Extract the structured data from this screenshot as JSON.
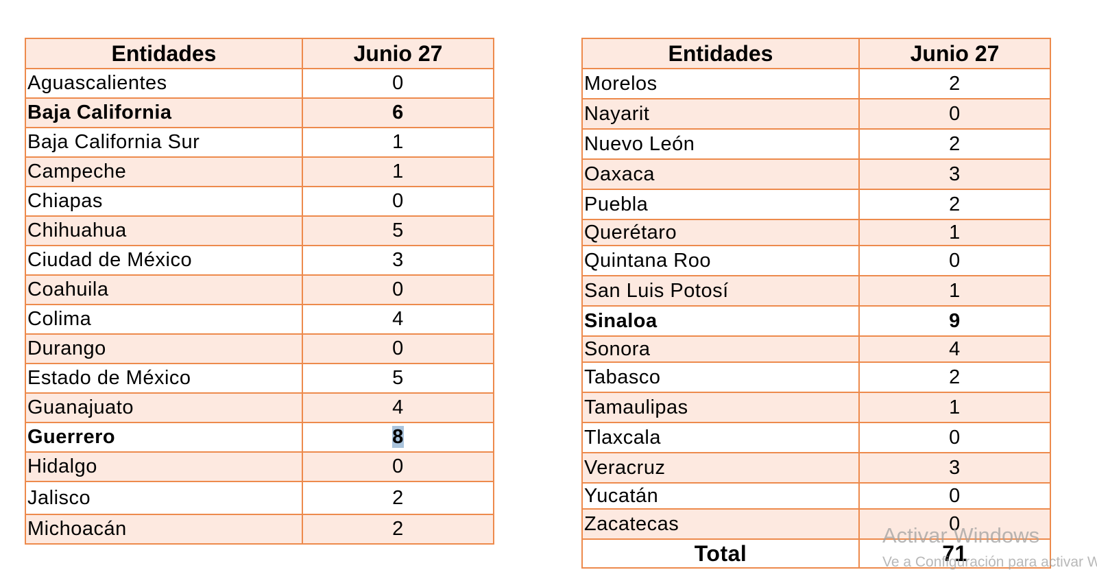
{
  "left_table": {
    "header_entity": "Entidades",
    "header_date": "Junio 27",
    "rows": [
      {
        "name": "Aguascalientes",
        "value": "0"
      },
      {
        "name": "Baja California",
        "value": "6"
      },
      {
        "name": "Baja California Sur",
        "value": "1"
      },
      {
        "name": "Campeche",
        "value": "1"
      },
      {
        "name": "Chiapas",
        "value": "0"
      },
      {
        "name": "Chihuahua",
        "value": "5"
      },
      {
        "name": "Ciudad de México",
        "value": "3"
      },
      {
        "name": "Coahuila",
        "value": "0"
      },
      {
        "name": "Colima",
        "value": "4"
      },
      {
        "name": "Durango",
        "value": "0"
      },
      {
        "name": "Estado de México",
        "value": "5"
      },
      {
        "name": "Guanajuato",
        "value": "4"
      },
      {
        "name": "Guerrero",
        "value": "8"
      },
      {
        "name": "Hidalgo",
        "value": "0"
      },
      {
        "name": "Jalisco",
        "value": "2"
      },
      {
        "name": "Michoacán",
        "value": "2"
      }
    ]
  },
  "right_table": {
    "header_entity": "Entidades",
    "header_date": "Junio 27",
    "rows": [
      {
        "name": "Morelos",
        "value": "2"
      },
      {
        "name": "Nayarit",
        "value": "0"
      },
      {
        "name": "Nuevo León",
        "value": "2"
      },
      {
        "name": "Oaxaca",
        "value": "3"
      },
      {
        "name": "Puebla",
        "value": "2"
      },
      {
        "name": "Querétaro",
        "value": "1"
      },
      {
        "name": "Quintana Roo",
        "value": "0"
      },
      {
        "name": "San Luis Potosí",
        "value": "1"
      },
      {
        "name": "Sinaloa",
        "value": "9"
      },
      {
        "name": "Sonora",
        "value": "4"
      },
      {
        "name": "Tabasco",
        "value": "2"
      },
      {
        "name": "Tamaulipas",
        "value": "1"
      },
      {
        "name": "Tlaxcala",
        "value": "0"
      },
      {
        "name": "Veracruz",
        "value": "3"
      },
      {
        "name": "Yucatán",
        "value": "0"
      },
      {
        "name": "Zacatecas",
        "value": "0"
      }
    ],
    "total_label": "Total",
    "total_value": "71"
  },
  "watermark": {
    "title": "Activar Windows",
    "subtitle": "Ve a Configuración para activar Windows."
  },
  "colors": {
    "border": "#ed8a4c",
    "shade": "#fde9e0",
    "selection": "#a9c3dc"
  }
}
